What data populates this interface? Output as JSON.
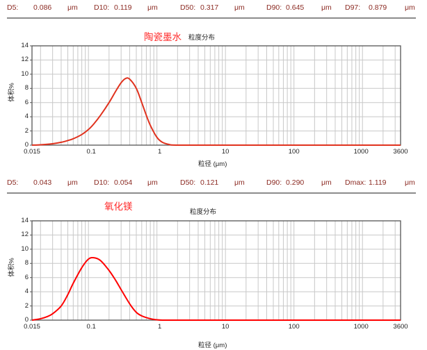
{
  "panels": [
    {
      "stats": [
        {
          "label": "D5:",
          "value": "0.086",
          "unit": "μm"
        },
        {
          "label": "D10:",
          "value": "0.119",
          "unit": "μm"
        },
        {
          "label": "D50:",
          "value": "0.317",
          "unit": "μm"
        },
        {
          "label": "D90:",
          "value": "0.645",
          "unit": "μm"
        },
        {
          "label": "D97:",
          "value": "0.879",
          "unit": "μm"
        }
      ],
      "sample_title": "陶瓷墨水",
      "chart_title": "粒度分布"
    },
    {
      "stats": [
        {
          "label": "D5:",
          "value": "0.043",
          "unit": "μm"
        },
        {
          "label": "D10:",
          "value": "0.054",
          "unit": "μm"
        },
        {
          "label": "D50:",
          "value": "0.121",
          "unit": "μm"
        },
        {
          "label": "D90:",
          "value": "0.290",
          "unit": "μm"
        },
        {
          "label": "Dmax:",
          "value": "1.119",
          "unit": "μm"
        }
      ],
      "sample_title": "氧化镁",
      "chart_title": "粒度分布"
    }
  ],
  "axes": {
    "ylabel": "体积%",
    "xlabel": "粒径 (μm)",
    "y_ticks": [
      "0",
      "2",
      "4",
      "6",
      "8",
      "10",
      "12",
      "14"
    ],
    "x_ticks": [
      "0.015",
      "0.1",
      "1",
      "10",
      "100",
      "1000",
      "3600"
    ]
  },
  "colors": {
    "stats_text": "#8b2a22",
    "sample_title": "#ff2a2a",
    "curve_1": "#e0321e",
    "curve_2": "#ff0000",
    "grid": "#c8c8c8",
    "frame": "#555555"
  },
  "chart_data": [
    {
      "type": "line",
      "title": "粒度分布",
      "subtitle": "陶瓷墨水",
      "xlabel": "粒径 (μm)",
      "ylabel": "体积%",
      "xscale": "log",
      "xlim": [
        0.015,
        3600
      ],
      "ylim": [
        0,
        14
      ],
      "grid": true,
      "x_tick_labels": [
        "0.015",
        "0.1",
        "1",
        "10",
        "100",
        "1000",
        "3600"
      ],
      "y_tick_labels": [
        "0",
        "2",
        "4",
        "6",
        "8",
        "10",
        "12",
        "14"
      ],
      "series": [
        {
          "name": "陶瓷墨水",
          "x": [
            0.015,
            0.02,
            0.03,
            0.04,
            0.05,
            0.06,
            0.08,
            0.1,
            0.12,
            0.15,
            0.2,
            0.25,
            0.3,
            0.35,
            0.4,
            0.5,
            0.6,
            0.7,
            0.8,
            1.0,
            1.2,
            1.5,
            2.0,
            10,
            100,
            1000,
            3600
          ],
          "values": [
            0.0,
            0.05,
            0.2,
            0.4,
            0.65,
            0.9,
            1.5,
            2.2,
            3.0,
            4.2,
            6.0,
            7.6,
            8.8,
            9.4,
            9.3,
            8.0,
            6.0,
            4.2,
            2.8,
            1.1,
            0.4,
            0.1,
            0.0,
            0.0,
            0.0,
            0.0,
            0.0
          ]
        }
      ],
      "annotations": [
        "D5: 0.086 μm",
        "D10: 0.119 μm",
        "D50: 0.317 μm",
        "D90: 0.645 μm",
        "D97: 0.879 μm"
      ]
    },
    {
      "type": "line",
      "title": "粒度分布",
      "subtitle": "氧化镁",
      "xlabel": "粒径 (μm)",
      "ylabel": "体积%",
      "xscale": "log",
      "xlim": [
        0.015,
        3600
      ],
      "ylim": [
        0,
        14
      ],
      "grid": true,
      "x_tick_labels": [
        "0.015",
        "0.1",
        "1",
        "10",
        "100",
        "1000",
        "3600"
      ],
      "y_tick_labels": [
        "0",
        "2",
        "4",
        "6",
        "8",
        "10",
        "12",
        "14"
      ],
      "series": [
        {
          "name": "氧化镁",
          "x": [
            0.015,
            0.02,
            0.025,
            0.03,
            0.04,
            0.05,
            0.06,
            0.08,
            0.1,
            0.12,
            0.15,
            0.2,
            0.25,
            0.3,
            0.4,
            0.5,
            0.6,
            0.8,
            1.0,
            1.2,
            1.5,
            10,
            100,
            1000,
            3600
          ],
          "values": [
            0.0,
            0.2,
            0.5,
            0.9,
            2.0,
            3.6,
            5.2,
            7.4,
            8.6,
            8.8,
            8.4,
            7.0,
            5.6,
            4.3,
            2.3,
            1.1,
            0.6,
            0.2,
            0.05,
            0.0,
            0.0,
            0.0,
            0.0,
            0.0,
            0.0
          ]
        }
      ],
      "annotations": [
        "D5: 0.043 μm",
        "D10: 0.054 μm",
        "D50: 0.121 μm",
        "D90: 0.290 μm",
        "Dmax: 1.119 μm"
      ]
    }
  ]
}
